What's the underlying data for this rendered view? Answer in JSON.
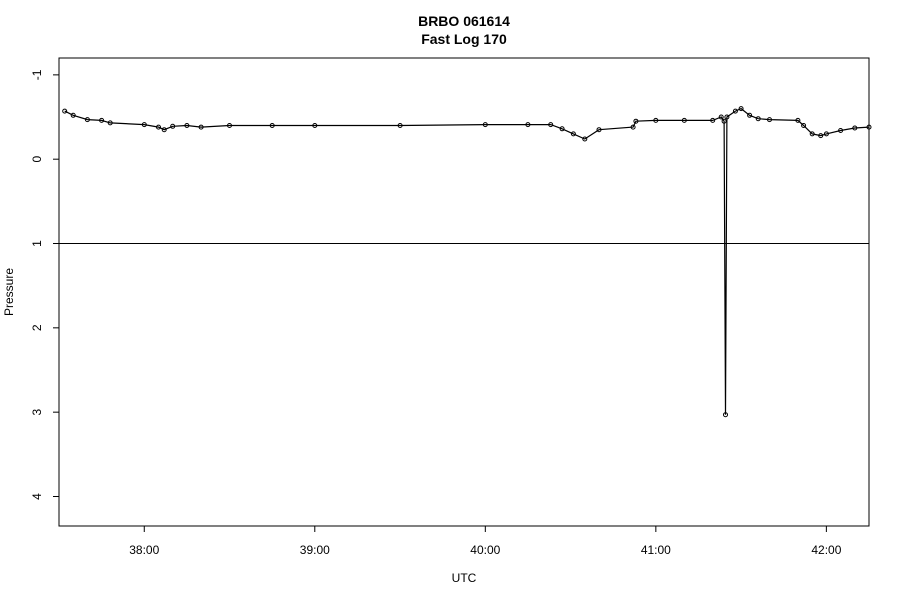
{
  "chart_data": {
    "type": "scatter",
    "title": "BRBO 061614",
    "subtitle": "Fast Log 170",
    "xlabel": "UTC",
    "ylabel": "Pressure",
    "x_ticks": [
      "38:00",
      "39:00",
      "40:00",
      "41:00",
      "42:00"
    ],
    "y_ticks": [
      "-1",
      "0",
      "1",
      "2",
      "3",
      "4"
    ],
    "xlim": [
      "37:30",
      "42:15"
    ],
    "ylim_reversed": [
      4.35,
      -1.2
    ],
    "reference_line": {
      "y": 1
    },
    "series_color": "#000000",
    "series": [
      {
        "x": [
          "37:32",
          "37:35",
          "37:40",
          "37:45",
          "37:48",
          "38:00",
          "38:05",
          "38:07",
          "38:10",
          "38:15",
          "38:20",
          "38:30",
          "38:45",
          "39:00",
          "39:30",
          "40:00",
          "40:15",
          "40:23",
          "40:27",
          "40:31",
          "40:35",
          "40:40",
          "40:52",
          "40:53",
          "41:00",
          "41:10",
          "41:20",
          "41:23",
          "41:24",
          "41:24.5",
          "41:25",
          "41:28",
          "41:30",
          "41:33",
          "41:36",
          "41:40",
          "41:50",
          "41:52",
          "41:55",
          "41:58",
          "42:00",
          "42:05",
          "42:10",
          "42:15"
        ],
        "y": [
          -0.57,
          -0.52,
          -0.47,
          -0.46,
          -0.43,
          -0.41,
          -0.38,
          -0.35,
          -0.39,
          -0.4,
          -0.38,
          -0.4,
          -0.4,
          -0.4,
          -0.4,
          -0.41,
          -0.41,
          -0.41,
          -0.36,
          -0.3,
          -0.24,
          -0.35,
          -0.38,
          -0.45,
          -0.46,
          -0.46,
          -0.46,
          -0.5,
          -0.45,
          3.03,
          -0.5,
          -0.57,
          -0.6,
          -0.52,
          -0.48,
          -0.47,
          -0.46,
          -0.4,
          -0.3,
          -0.28,
          -0.3,
          -0.34,
          -0.37,
          -0.38
        ]
      }
    ]
  }
}
